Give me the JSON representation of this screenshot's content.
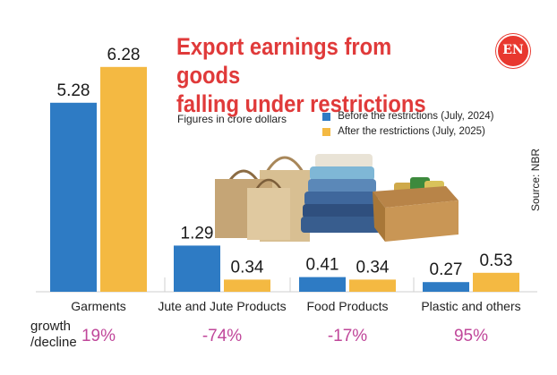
{
  "chart_data": {
    "type": "bar",
    "title": "Export earnings from goods falling under restrictions",
    "title_lines": [
      "Export earnings from goods",
      "falling under restrictions"
    ],
    "subtitle": "Figures in crore dollars",
    "source": "Source: NBR",
    "logo": "EN",
    "categories": [
      "Garments",
      "Jute and Jute Products",
      "Food Products",
      "Plastic and others"
    ],
    "series": [
      {
        "name": "Before the restrictions (July, 2024)",
        "color": "#2e7bc4",
        "values": [
          5.28,
          1.29,
          0.41,
          0.27
        ]
      },
      {
        "name": "After the restrictions (July, 2025)",
        "color": "#f4b942",
        "values": [
          6.28,
          0.34,
          0.34,
          0.53
        ]
      }
    ],
    "growth_label": [
      "growth",
      "/decline"
    ],
    "growth": [
      "19%",
      "-74%",
      "-17%",
      "95%"
    ],
    "ylim": [
      0,
      7
    ]
  },
  "colors": {
    "title": "#e03a3a",
    "growth": "#c0479a",
    "text": "#222222"
  },
  "icons": [
    "en-logo",
    "shopping-bags-illustration",
    "clothes-stack-illustration",
    "box-illustration"
  ]
}
